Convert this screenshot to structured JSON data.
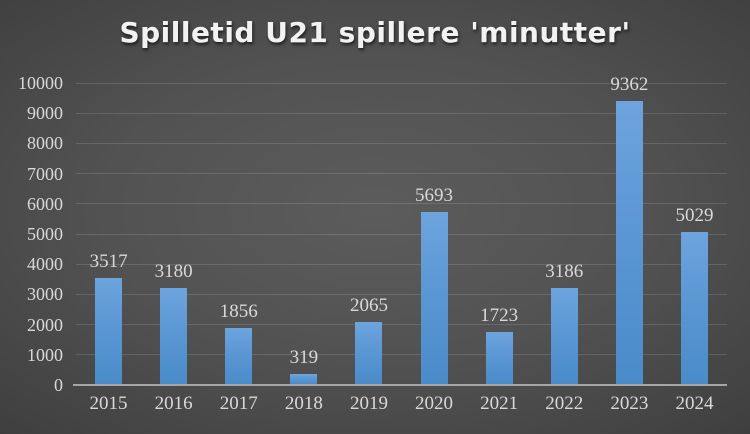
{
  "chart_data": {
    "type": "bar",
    "title": "Spilletid U21 spillere 'minutter'",
    "categories": [
      "2015",
      "2016",
      "2017",
      "2018",
      "2019",
      "2020",
      "2021",
      "2022",
      "2023",
      "2024"
    ],
    "values": [
      3517,
      3180,
      1856,
      319,
      2065,
      5693,
      1723,
      3186,
      9362,
      5029
    ],
    "xlabel": "",
    "ylabel": "",
    "ylim": [
      0,
      10000
    ],
    "ytick_step": 1000,
    "grid": true,
    "legend": false,
    "data_labels": true,
    "colors": {
      "bar_top": "#6da4de",
      "bar_bottom": "#4a8bc9",
      "label_text": "#d9d9d9",
      "title_text": "#f2f2f2",
      "axis_line": "#a6a6a6",
      "gridline": "rgba(255,255,255,0.13)",
      "background_center": "#5c5c5c",
      "background_edge": "#232323"
    }
  }
}
